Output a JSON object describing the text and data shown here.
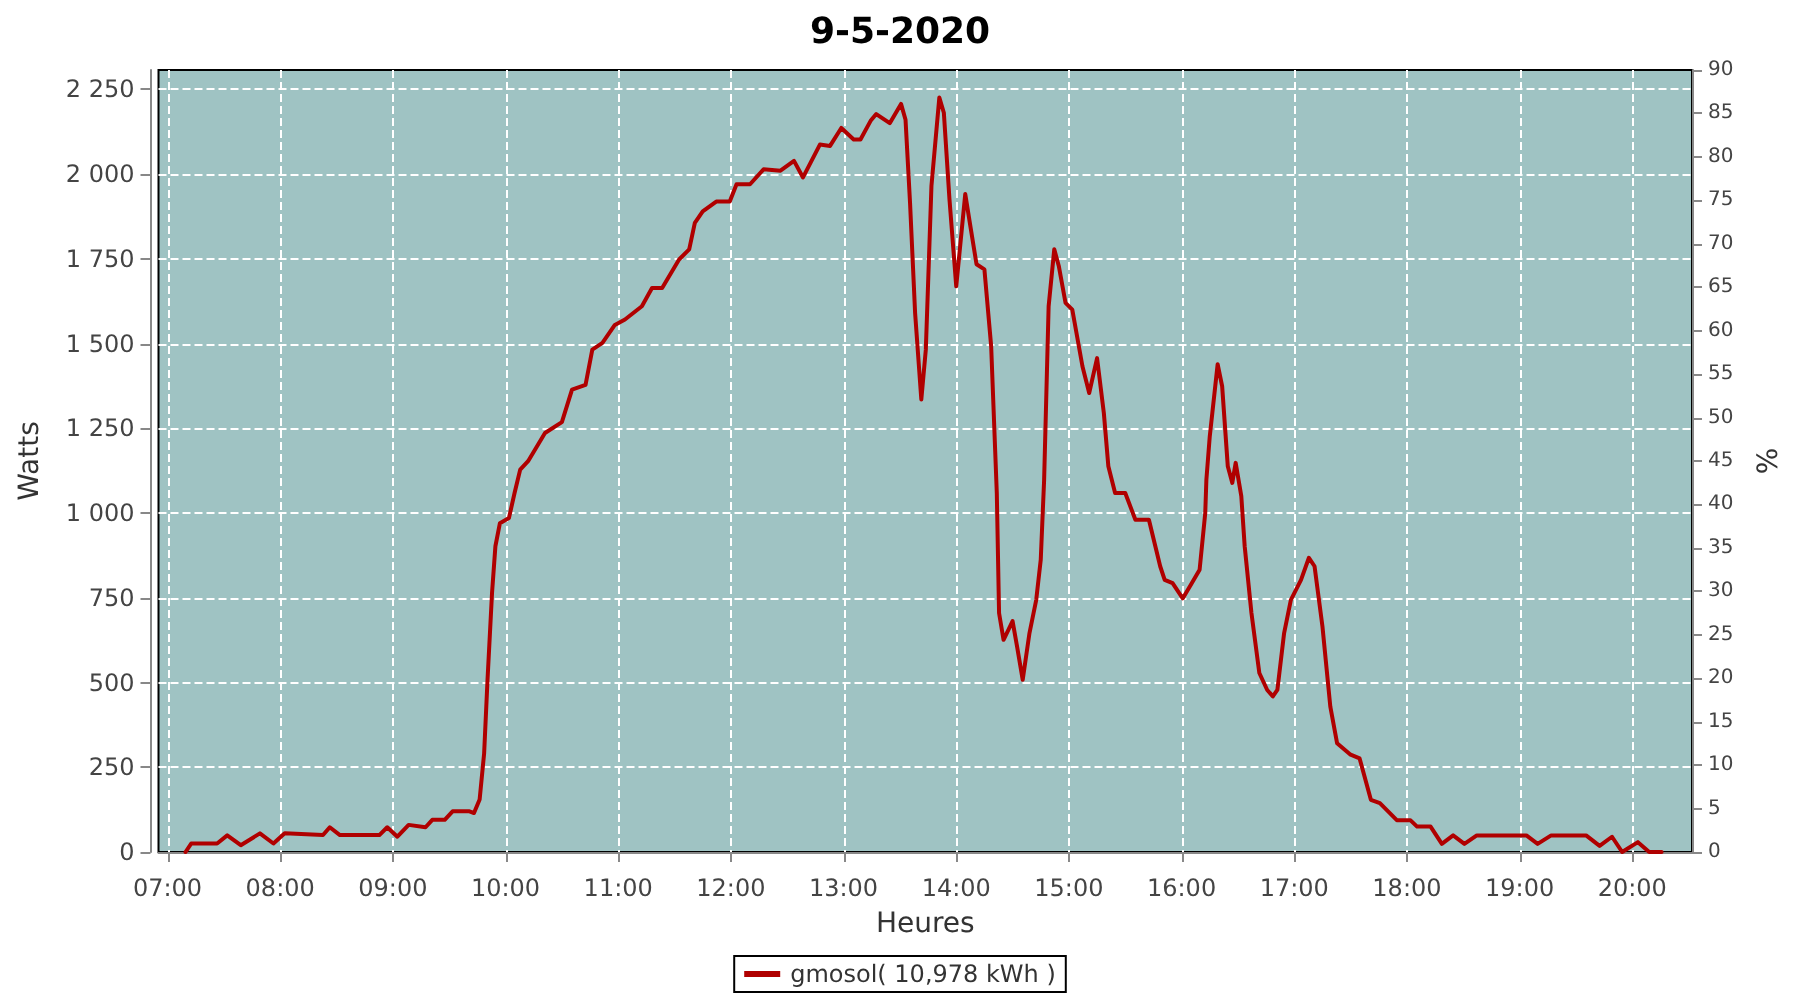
{
  "chart_data": {
    "type": "line",
    "title": "9-5-2020",
    "xlabel": "Heures",
    "ylabel": "Watts",
    "y2label": "%",
    "xlim": [
      6.92,
      20.53
    ],
    "xticks": [
      {
        "value": 7,
        "label": "07:00"
      },
      {
        "value": 8,
        "label": "08:00"
      },
      {
        "value": 9,
        "label": "09:00"
      },
      {
        "value": 10,
        "label": "10:00"
      },
      {
        "value": 11,
        "label": "11:00"
      },
      {
        "value": 12,
        "label": "12:00"
      },
      {
        "value": 13,
        "label": "13:00"
      },
      {
        "value": 14,
        "label": "14:00"
      },
      {
        "value": 15,
        "label": "15:00"
      },
      {
        "value": 16,
        "label": "16:00"
      },
      {
        "value": 17,
        "label": "17:00"
      },
      {
        "value": 18,
        "label": "18:00"
      },
      {
        "value": 19,
        "label": "19:00"
      },
      {
        "value": 20,
        "label": "20:00"
      }
    ],
    "ylim": [
      0,
      2307
    ],
    "yticks": [
      0,
      250,
      500,
      750,
      {
        "value": 1000,
        "label": "1 000"
      },
      {
        "value": 1250,
        "label": "1 250"
      },
      {
        "value": 1500,
        "label": "1 500"
      },
      {
        "value": 1750,
        "label": "1 750"
      },
      {
        "value": 2000,
        "label": "2 000"
      },
      {
        "value": 2250,
        "label": "2 250"
      }
    ],
    "y2lim": [
      0,
      90
    ],
    "y2ticks": [
      0,
      5,
      10,
      15,
      20,
      25,
      30,
      35,
      40,
      45,
      50,
      55,
      60,
      65,
      70,
      75,
      80,
      85,
      90
    ],
    "grid": true,
    "legend": "bottom",
    "marker": "none",
    "line_style": "solid",
    "series": [
      {
        "name": "gmosol( 10,978 kWh )",
        "color": "#b00000",
        "x": [
          7.16,
          7.21,
          7.44,
          7.53,
          7.65,
          7.82,
          7.94,
          8.04,
          8.38,
          8.44,
          8.53,
          8.88,
          8.95,
          9.04,
          9.14,
          9.29,
          9.35,
          9.46,
          9.53,
          9.68,
          9.72,
          9.77,
          9.81,
          9.84,
          9.88,
          9.91,
          9.95,
          10.03,
          10.08,
          10.13,
          10.2,
          10.35,
          10.5,
          10.59,
          10.71,
          10.77,
          10.86,
          10.97,
          11.06,
          11.21,
          11.3,
          11.39,
          11.54,
          11.63,
          11.68,
          11.75,
          11.87,
          11.99,
          12.05,
          12.17,
          12.29,
          12.44,
          12.56,
          12.64,
          12.79,
          12.88,
          12.98,
          13.09,
          13.15,
          13.24,
          13.29,
          13.41,
          13.51,
          13.55,
          13.59,
          13.635,
          13.69,
          13.73,
          13.78,
          13.85,
          13.89,
          13.94,
          14.0,
          14.08,
          14.13,
          14.18,
          14.25,
          14.31,
          14.36,
          14.38,
          14.42,
          14.5,
          14.54,
          14.59,
          14.65,
          14.71,
          14.75,
          14.78,
          14.82,
          14.87,
          14.91,
          14.97,
          15.03,
          15.12,
          15.18,
          15.25,
          15.31,
          15.35,
          15.41,
          15.5,
          15.59,
          15.71,
          15.81,
          15.85,
          15.92,
          16.01,
          16.09,
          16.16,
          16.21,
          16.22,
          16.25,
          16.32,
          16.36,
          16.41,
          16.45,
          16.48,
          16.53,
          16.56,
          16.62,
          16.69,
          16.76,
          16.81,
          16.85,
          16.91,
          16.97,
          17.06,
          17.13,
          17.18,
          17.25,
          17.32,
          17.38,
          17.5,
          17.58,
          17.68,
          17.76,
          17.91,
          18.03,
          18.09,
          18.21,
          18.31,
          18.41,
          18.51,
          18.62,
          19.06,
          19.16,
          19.28,
          19.59,
          19.71,
          19.82,
          19.91,
          20.05,
          20.15,
          20.26
        ],
        "values": [
          0,
          25,
          25,
          49,
          20,
          55,
          25,
          55,
          50,
          73,
          50,
          50,
          73,
          45,
          80,
          73,
          95,
          95,
          120,
          120,
          115,
          155,
          291,
          508,
          764,
          902,
          970,
          985,
          1059,
          1128,
          1153,
          1236,
          1268,
          1364,
          1378,
          1482,
          1502,
          1555,
          1571,
          1610,
          1664,
          1664,
          1748,
          1778,
          1856,
          1890,
          1919,
          1919,
          1970,
          1970,
          2014,
          2010,
          2039,
          1990,
          2087,
          2083,
          2136,
          2102,
          2102,
          2157,
          2177,
          2150,
          2207,
          2160,
          1915,
          1590,
          1335,
          1482,
          1965,
          2226,
          2181,
          1925,
          1669,
          1941,
          1837,
          1734,
          1719,
          1492,
          1059,
          705,
          626,
          681,
          606,
          508,
          646,
          744,
          862,
          1098,
          1610,
          1778,
          1729,
          1620,
          1600,
          1433,
          1354,
          1457,
          1295,
          1138,
          1059,
          1059,
          980,
          980,
          843,
          803,
          793,
          748,
          793,
          833,
          1000,
          1098,
          1226,
          1439,
          1374,
          1138,
          1089,
          1148,
          1050,
          902,
          705,
          528,
          478,
          459,
          478,
          646,
          744,
          803,
          868,
          843,
          666,
          429,
          321,
          287,
          276,
          154,
          144,
          94,
          94,
          75,
          75,
          24,
          49,
          24,
          49,
          49,
          24,
          49,
          49,
          18,
          45,
          0,
          29,
          0,
          0
        ]
      }
    ]
  }
}
